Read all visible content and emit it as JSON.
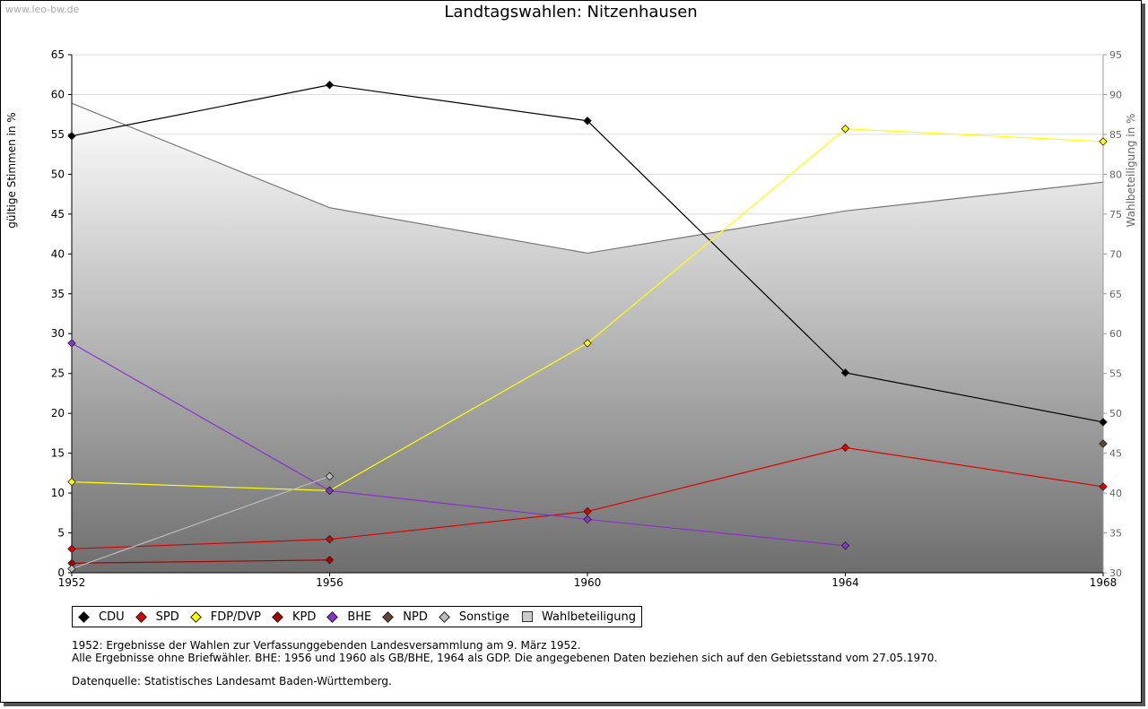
{
  "watermark": "www.leo-bw.de",
  "chart_data": {
    "type": "line",
    "title": "Landtagswahlen: Nitzenhausen",
    "ylabel": "gültige Stimmen in %",
    "y2label": "Wahlbeteiligung in %",
    "x": [
      1952,
      1956,
      1960,
      1964,
      1968
    ],
    "ylim": [
      0,
      65
    ],
    "y2lim": [
      30,
      95
    ],
    "yticks": [
      0,
      5,
      10,
      15,
      20,
      25,
      30,
      35,
      40,
      45,
      50,
      55,
      60,
      65
    ],
    "y2ticks": [
      30,
      35,
      40,
      45,
      50,
      55,
      60,
      65,
      70,
      75,
      80,
      85,
      90,
      95
    ],
    "series": [
      {
        "name": "CDU",
        "color": "#000000",
        "values": [
          54.8,
          61.2,
          56.7,
          25.1,
          18.9
        ]
      },
      {
        "name": "SPD",
        "color": "#dd0000",
        "values": [
          3.0,
          4.2,
          7.7,
          15.7,
          10.8
        ]
      },
      {
        "name": "FDP/DVP",
        "color": "#ffff00",
        "values": [
          11.4,
          10.3,
          28.8,
          55.7,
          54.1
        ]
      },
      {
        "name": "KPD",
        "color": "#aa0000",
        "values": [
          1.2,
          1.6,
          null,
          null,
          null
        ]
      },
      {
        "name": "BHE",
        "color": "#8833cc",
        "values": [
          28.8,
          10.3,
          6.7,
          3.4,
          null
        ]
      },
      {
        "name": "NPD",
        "color": "#664433",
        "values": [
          null,
          null,
          null,
          null,
          16.2
        ]
      },
      {
        "name": "Sonstige",
        "color": "#bbbbbb",
        "values": [
          0.5,
          12.1,
          null,
          null,
          null
        ]
      }
    ],
    "turnout": {
      "name": "Wahlbeteiligung",
      "axis": "right",
      "values": [
        88.9,
        75.8,
        70.1,
        75.4,
        79.0
      ]
    }
  },
  "notes": [
    "1952: Ergebnisse der Wahlen zur Verfassunggebenden Landesversammlung am 9. März 1952.",
    "Alle Ergebnisse ohne Briefwähler. BHE: 1956 und 1960 als GB/BHE, 1964 als GDP. Die angegebenen Daten beziehen sich auf den Gebietsstand vom 27.05.1970."
  ],
  "source": "Datenquelle: Statistisches Landesamt Baden-Württemberg."
}
